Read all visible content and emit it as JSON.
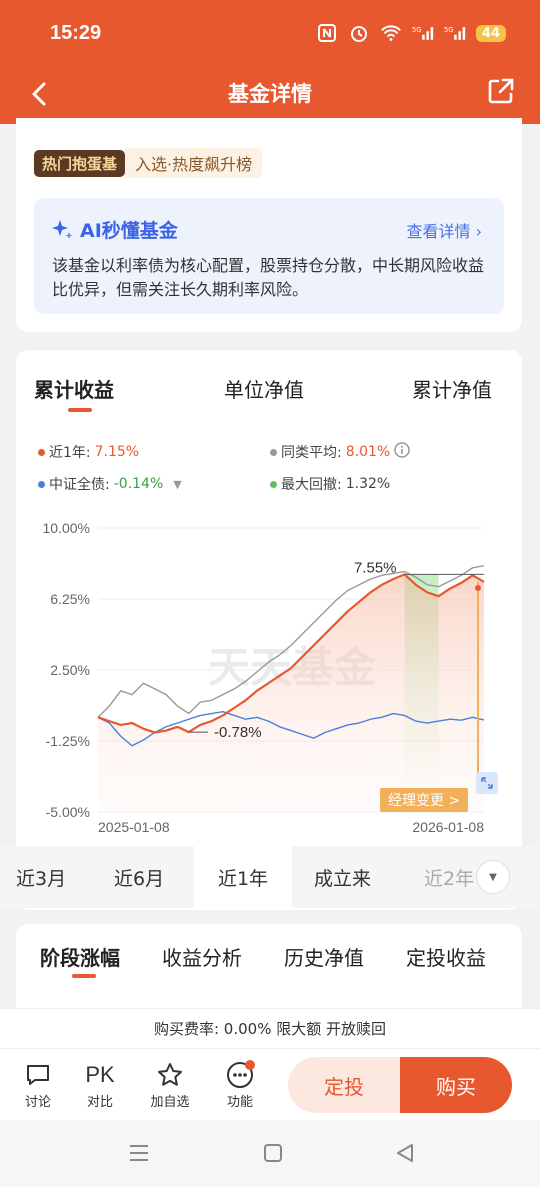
{
  "status": {
    "time": "15:29",
    "battery": "44"
  },
  "nav": {
    "title": "基金详情"
  },
  "top_card": {
    "hot_badge": "热门抱蛋基",
    "hot_text": "入选·热度飙升榜",
    "ai": {
      "title": "AI秒懂基金",
      "link": "查看详情",
      "desc": "该基金以利率债为核心配置，股票持仓分散，中长期风险收益比优异，但需关注长久期利率风险。"
    }
  },
  "chart_tabs": [
    "累计收益",
    "单位净值",
    "累计净值"
  ],
  "legend": {
    "fund_label": "近1年:",
    "fund_value": "7.15%",
    "peer_label": "同类平均:",
    "peer_value": "8.01%",
    "bench_label": "中证全债:",
    "bench_value": "-0.14%",
    "drawdown_label": "最大回撤:",
    "drawdown_value": "1.32%"
  },
  "chart_data": {
    "type": "line",
    "y_ticks": [
      "10.00%",
      "6.25%",
      "2.50%",
      "-1.25%",
      "-5.00%"
    ],
    "ylim": [
      -5.0,
      10.0
    ],
    "x_ticks": [
      "2025-01-08",
      "2026-01-08"
    ],
    "watermark": "天天基金",
    "annotations": {
      "max_label": "7.55%",
      "min_label": "-0.78%",
      "manager_change": "经理变更 >"
    },
    "series": [
      {
        "name": "近1年",
        "color": "#e8582e",
        "values": [
          0.0,
          -0.2,
          -0.4,
          -0.3,
          -0.6,
          -0.8,
          -0.7,
          -0.5,
          -0.78,
          -0.4,
          -0.2,
          0.1,
          0.5,
          0.9,
          1.4,
          1.8,
          2.2,
          2.6,
          3.2,
          3.8,
          4.4,
          5.0,
          5.6,
          6.1,
          6.6,
          7.0,
          7.3,
          7.55,
          7.0,
          6.6,
          6.4,
          6.8,
          7.1,
          7.5,
          7.15
        ]
      },
      {
        "name": "同类平均",
        "color": "#999999",
        "values": [
          0.0,
          0.6,
          1.4,
          1.2,
          1.8,
          1.5,
          1.2,
          0.6,
          0.2,
          0.8,
          0.9,
          1.2,
          1.5,
          1.9,
          2.4,
          2.9,
          3.3,
          3.8,
          4.4,
          5.0,
          5.6,
          6.2,
          6.7,
          7.0,
          7.3,
          7.5,
          7.6,
          7.7,
          7.4,
          7.0,
          6.9,
          7.2,
          7.5,
          7.9,
          8.01
        ]
      },
      {
        "name": "中证全债",
        "color": "#4a7fe0",
        "values": [
          0.0,
          -0.3,
          -1.0,
          -1.5,
          -1.2,
          -0.8,
          -0.5,
          -0.3,
          -0.1,
          0.1,
          0.2,
          0.3,
          0.1,
          -0.1,
          0.0,
          -0.2,
          -0.5,
          -0.7,
          -0.9,
          -1.1,
          -0.8,
          -0.6,
          -0.4,
          -0.3,
          -0.1,
          0.0,
          0.2,
          0.1,
          -0.2,
          -0.3,
          -0.2,
          -0.1,
          -0.15,
          0.0,
          -0.14
        ]
      }
    ]
  },
  "period_tabs": [
    "近3月",
    "近6月",
    "近1年",
    "成立来",
    "近2年"
  ],
  "sub_tabs": [
    "阶段涨幅",
    "收益分析",
    "历史净值",
    "定投收益"
  ],
  "fee_text": "购买费率: 0.00% 限大额 开放赎回",
  "actions": {
    "discuss": "讨论",
    "pk": "PK",
    "pk_label": "对比",
    "watch": "加自选",
    "func": "功能",
    "dingtou": "定投",
    "buy": "购买"
  },
  "colors": {
    "brand": "#e8582e",
    "ai": "#3a63e6"
  }
}
